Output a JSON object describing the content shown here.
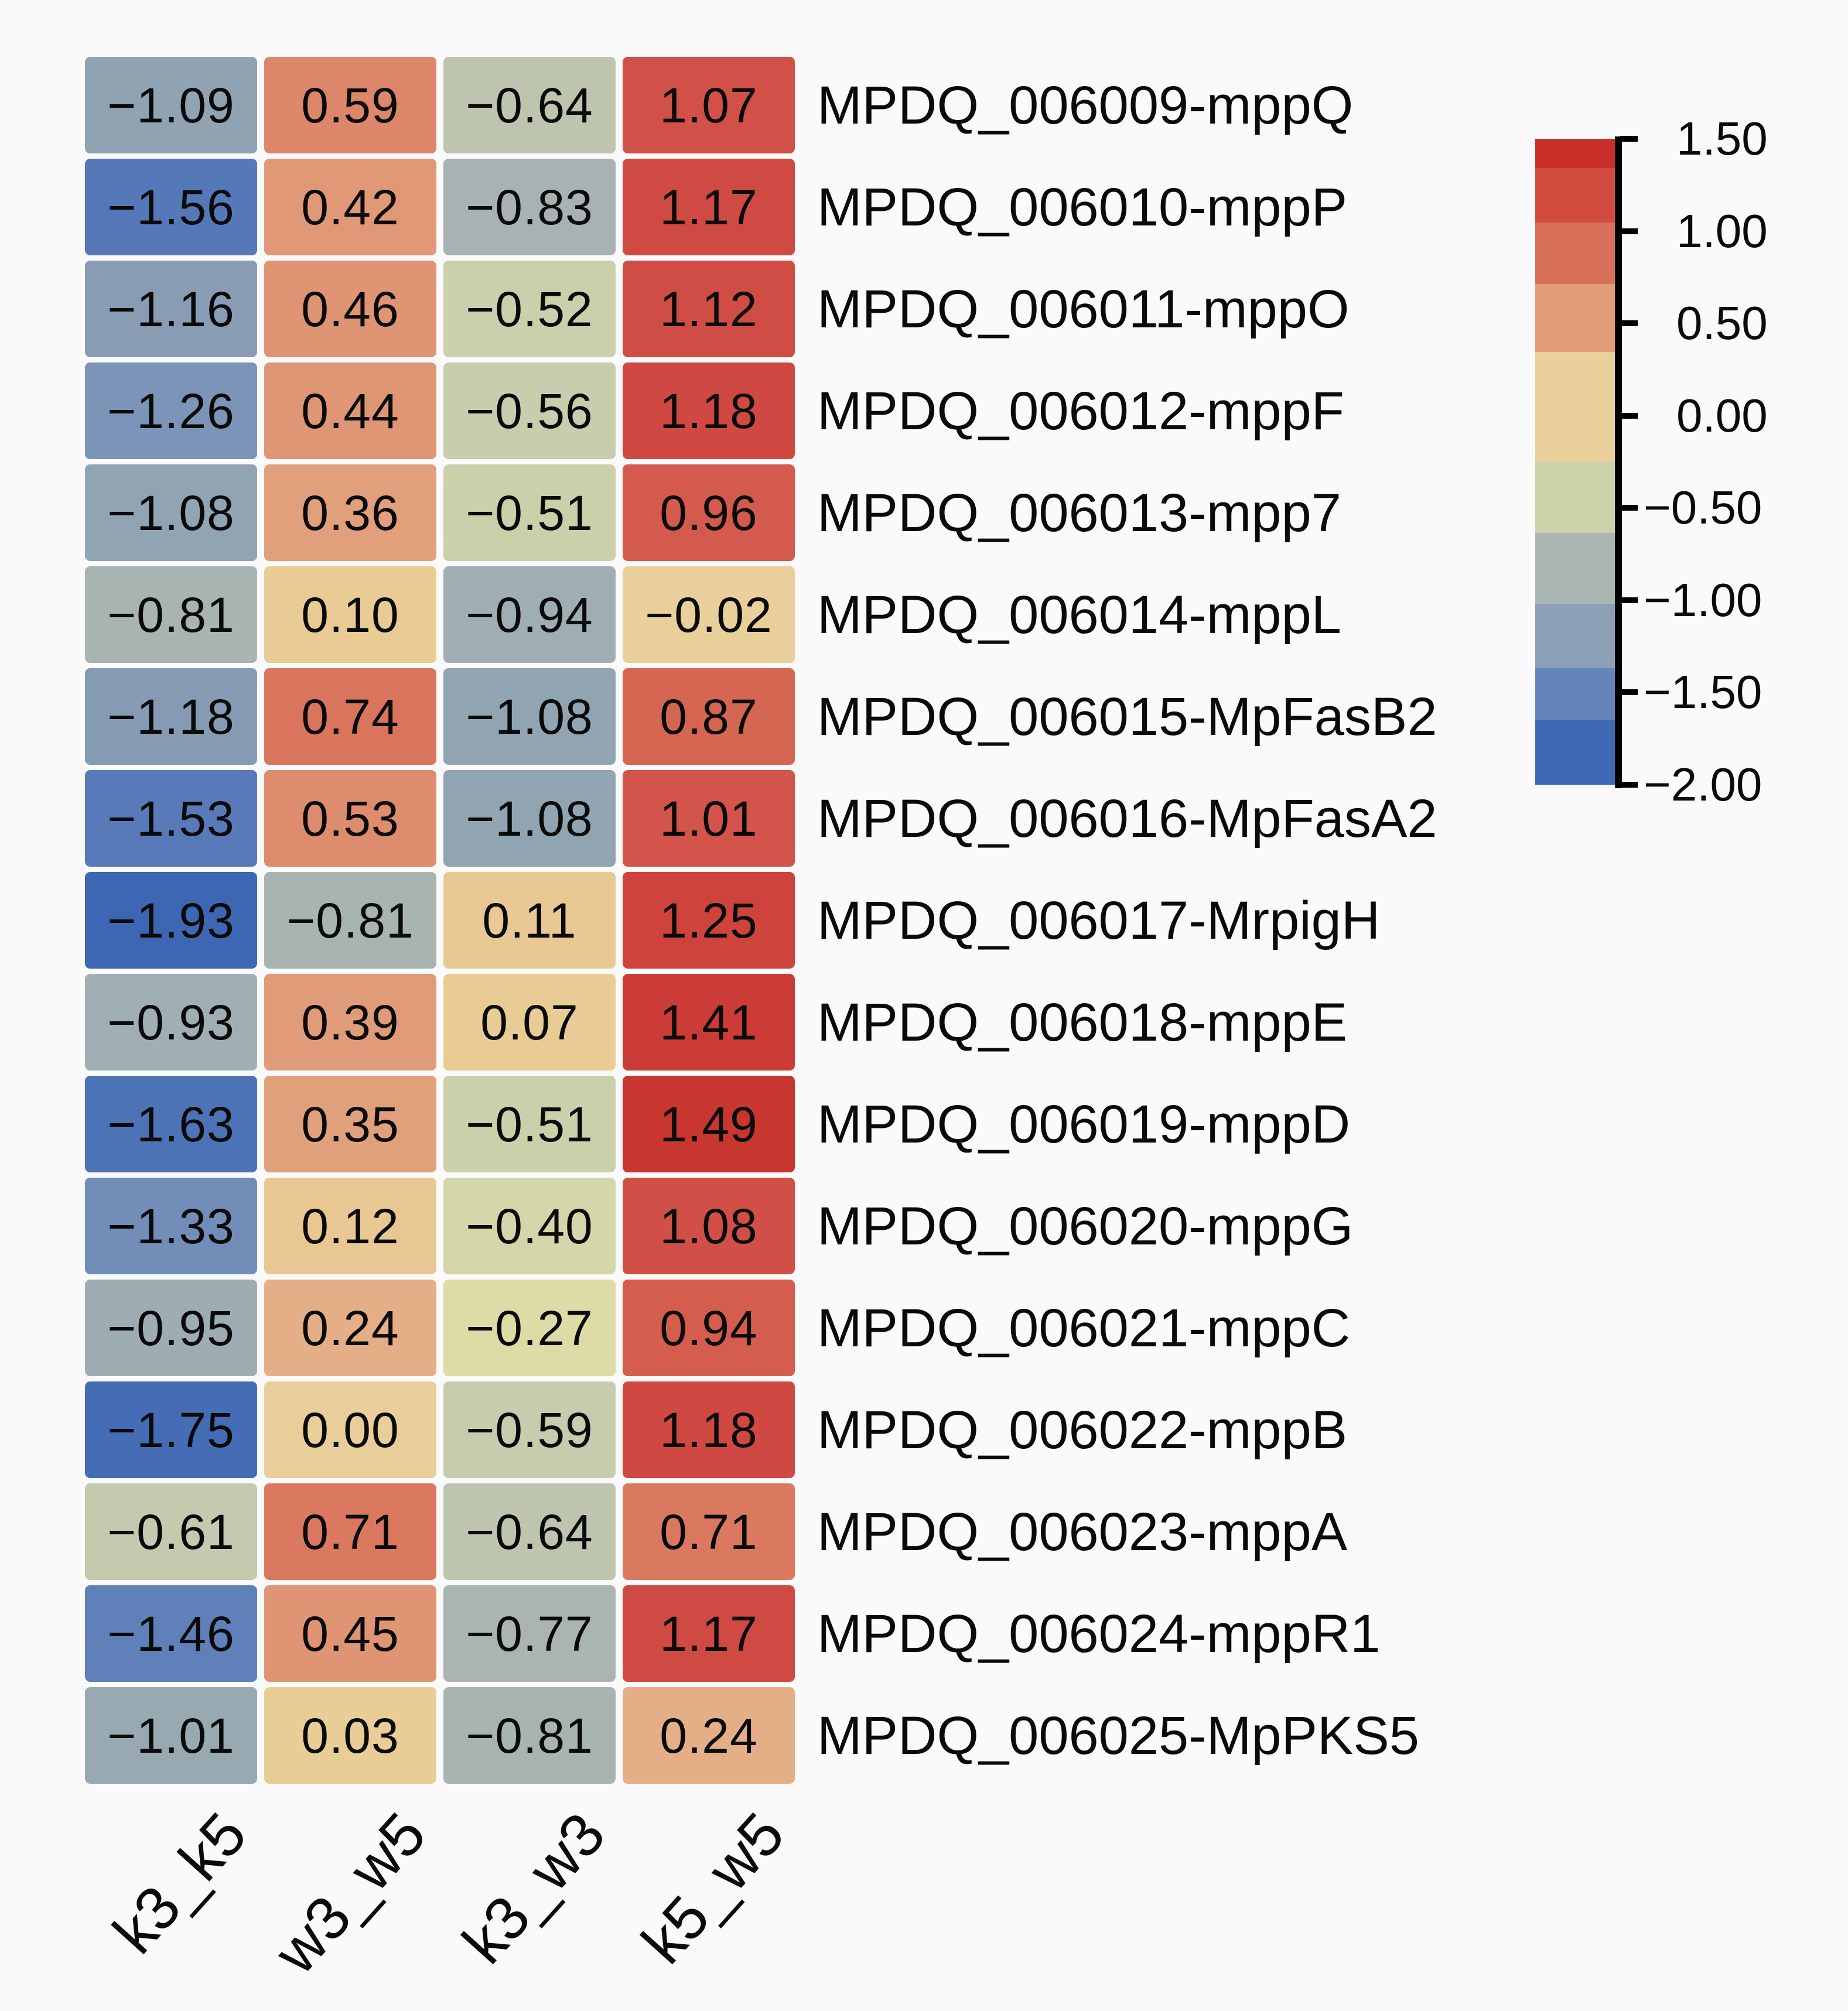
{
  "colors": {
    "background": "#fafafa",
    "text": "#0a0a0a",
    "legend_axis": "#000000"
  },
  "chart_data": {
    "type": "heatmap",
    "title": "",
    "columns": [
      "k3_k5",
      "w3_w5",
      "k3_w3",
      "k5_w5"
    ],
    "rows": [
      "MPDQ_006009-mppQ",
      "MPDQ_006010-mppP",
      "MPDQ_006011-mppO",
      "MPDQ_006012-mppF",
      "MPDQ_006013-mpp7",
      "MPDQ_006014-mppL",
      "MPDQ_006015-MpFasB2",
      "MPDQ_006016-MpFasA2",
      "MPDQ_006017-MrpigH",
      "MPDQ_006018-mppE",
      "MPDQ_006019-mppD",
      "MPDQ_006020-mppG",
      "MPDQ_006021-mppC",
      "MPDQ_006022-mppB",
      "MPDQ_006023-mppA",
      "MPDQ_006024-mppR1",
      "MPDQ_006025-MpPKS5"
    ],
    "values": [
      [
        -1.09,
        0.59,
        -0.64,
        1.07
      ],
      [
        -1.56,
        0.42,
        -0.83,
        1.17
      ],
      [
        -1.16,
        0.46,
        -0.52,
        1.12
      ],
      [
        -1.26,
        0.44,
        -0.56,
        1.18
      ],
      [
        -1.08,
        0.36,
        -0.51,
        0.96
      ],
      [
        -0.81,
        0.1,
        -0.94,
        -0.02
      ],
      [
        -1.18,
        0.74,
        -1.08,
        0.87
      ],
      [
        -1.53,
        0.53,
        -1.08,
        1.01
      ],
      [
        -1.93,
        -0.81,
        0.11,
        1.25
      ],
      [
        -0.93,
        0.39,
        0.07,
        1.41
      ],
      [
        -1.63,
        0.35,
        -0.51,
        1.49
      ],
      [
        -1.33,
        0.12,
        -0.4,
        1.08
      ],
      [
        -0.95,
        0.24,
        -0.27,
        0.94
      ],
      [
        -1.75,
        0.0,
        -0.59,
        1.18
      ],
      [
        -0.61,
        0.71,
        -0.64,
        0.71
      ],
      [
        -1.46,
        0.45,
        -0.77,
        1.17
      ],
      [
        -1.01,
        0.03,
        -0.81,
        0.24
      ]
    ],
    "value_format": "two-decimals",
    "cell_value_labels": true,
    "layout": {
      "legend_position": "right",
      "grid": false,
      "column_labels_rotated": true
    },
    "colorbar": {
      "min": -2.0,
      "max": 1.5,
      "ticks": [
        "1.50",
        "1.00",
        "0.50",
        "0.00",
        "−0.50",
        "−1.00",
        "−1.50",
        "−2.00"
      ],
      "tick_values": [
        1.5,
        1.0,
        0.5,
        0.0,
        -0.5,
        -1.0,
        -1.5,
        -2.0
      ],
      "palette": [
        [
          -2.0,
          "#3a65b2"
        ],
        [
          -1.7,
          "#466eb5"
        ],
        [
          -1.5,
          "#5b7cba"
        ],
        [
          -1.3,
          "#7690b8"
        ],
        [
          -1.1,
          "#8fa2b2"
        ],
        [
          -0.9,
          "#a3b1b3"
        ],
        [
          -0.75,
          "#abb6b1"
        ],
        [
          -0.6,
          "#c5cbae"
        ],
        [
          -0.4,
          "#d3d6a8"
        ],
        [
          -0.25,
          "#dfdca6"
        ],
        [
          -0.05,
          "#e9d09b"
        ],
        [
          0.1,
          "#e9cb94"
        ],
        [
          0.25,
          "#e4ad85"
        ],
        [
          0.4,
          "#e09a78"
        ],
        [
          0.55,
          "#dd8a6d"
        ],
        [
          0.7,
          "#da7a61"
        ],
        [
          0.85,
          "#d66952"
        ],
        [
          1.0,
          "#d2554a"
        ],
        [
          1.15,
          "#cf4b44"
        ],
        [
          1.3,
          "#cd403a"
        ],
        [
          1.45,
          "#c93a33"
        ],
        [
          1.5,
          "#c7352e"
        ]
      ],
      "legend_band_colors": [
        "#c92f29",
        "#d14b3e",
        "#d8705a",
        "#e29d79",
        "#e9d09b",
        "#cdd1aa",
        "#aab6b1",
        "#8ca1b6",
        "#6584ba",
        "#3e68b3"
      ],
      "legend_band_bounds": [
        0,
        0.045,
        0.13,
        0.225,
        0.33,
        0.5,
        0.61,
        0.72,
        0.82,
        0.9,
        1.0
      ]
    }
  }
}
